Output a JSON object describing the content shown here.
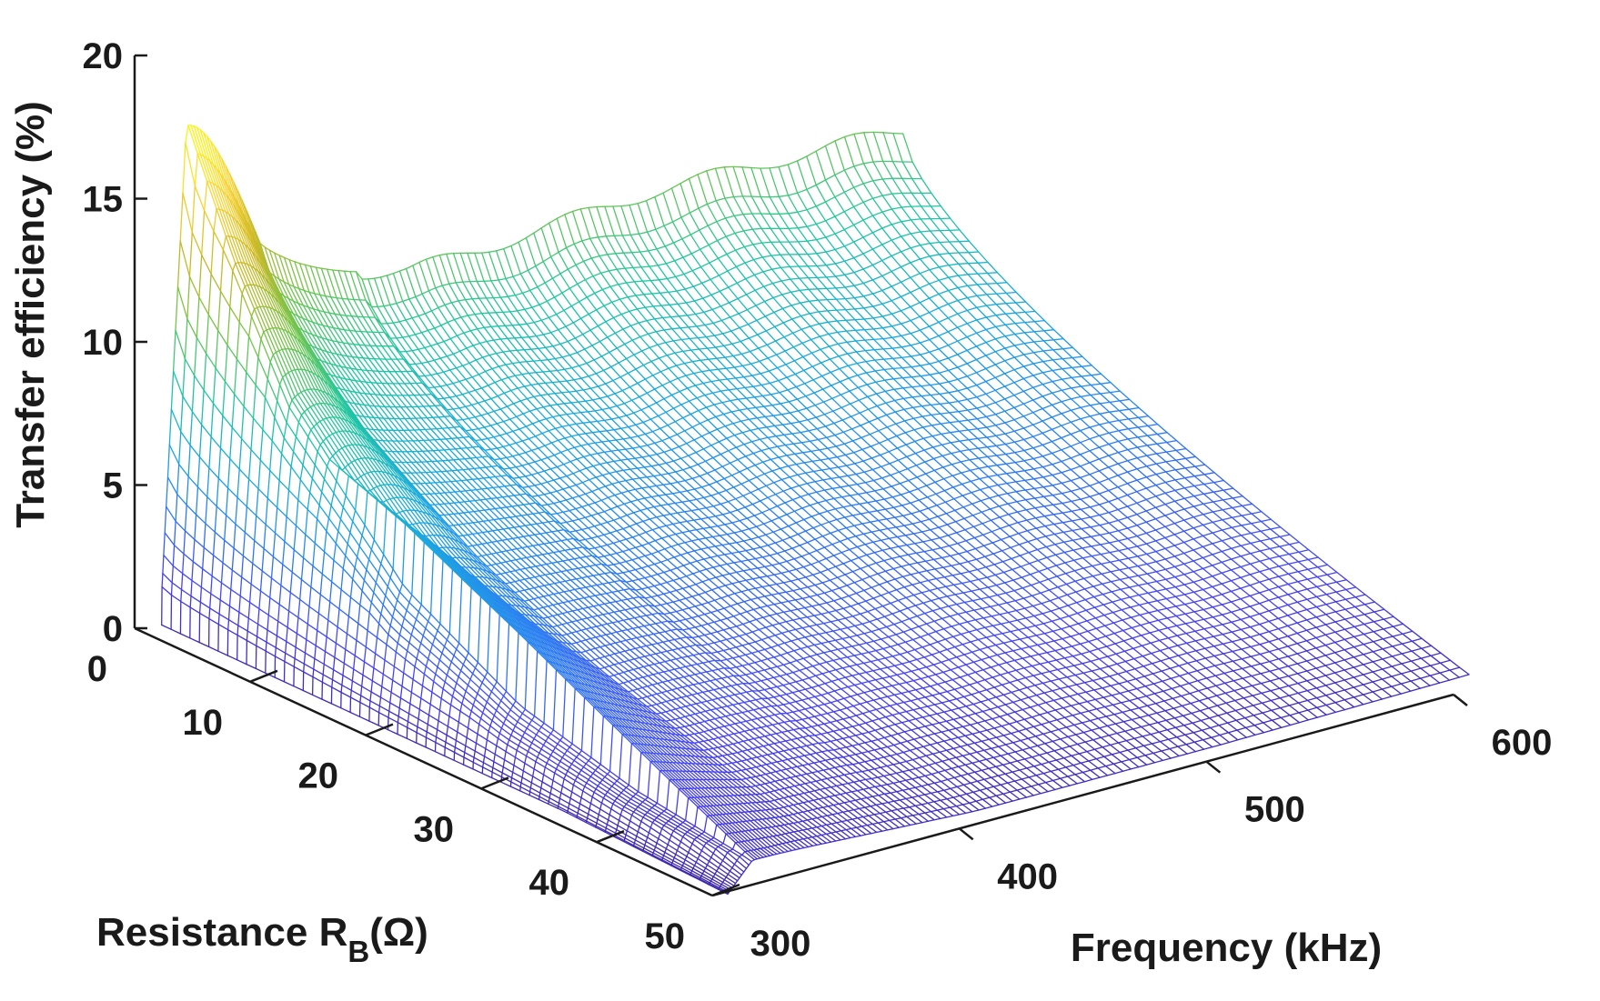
{
  "chart_data": {
    "type": "surface",
    "render": "mesh",
    "colormap": "parula",
    "colormap_colors": [
      "#3e26a8",
      "#4743f6",
      "#2c7cf3",
      "#1ba8e0",
      "#20c7a0",
      "#6dc54e",
      "#c9b927",
      "#fbd435",
      "#f9fb0e"
    ],
    "x_axis": {
      "label": "Frequency (kHz)",
      "range": [
        300,
        600
      ],
      "ticks": [
        300,
        400,
        500,
        600
      ],
      "tick_labels": [
        "300",
        "400",
        "500",
        "600"
      ]
    },
    "y_axis": {
      "label_main": "Resistance R",
      "label_sub": "B",
      "label_tail": "(Ω)",
      "range": [
        0,
        50
      ],
      "ticks": [
        0,
        10,
        20,
        30,
        40,
        50
      ],
      "tick_labels": [
        "0",
        "10",
        "20",
        "30",
        "40",
        "50"
      ]
    },
    "z_axis": {
      "label": "Transfer efficiency (%)",
      "range": [
        0,
        20
      ],
      "ticks": [
        0,
        5,
        10,
        15,
        20
      ],
      "tick_labels": [
        "0",
        "5",
        "10",
        "15",
        "20"
      ]
    },
    "surface_data_extent": {
      "frequency_khz": [
        300,
        600
      ],
      "resistance_ohm": [
        1,
        50
      ]
    },
    "peak": {
      "frequency_khz": 310,
      "resistance_ohm": 1,
      "efficiency_pct": 17.5
    },
    "resistance_profile": [
      {
        "resistance_ohm": 1,
        "efficiency_pct": 17.5
      },
      {
        "resistance_ohm": 5,
        "efficiency_pct": 13.5
      },
      {
        "resistance_ohm": 10,
        "efficiency_pct": 9.5
      },
      {
        "resistance_ohm": 20,
        "efficiency_pct": 5.0
      },
      {
        "resistance_ohm": 30,
        "efficiency_pct": 2.7
      },
      {
        "resistance_ohm": 40,
        "efficiency_pct": 1.6
      },
      {
        "resistance_ohm": 50,
        "efficiency_pct": 1.0
      }
    ],
    "frequency_profile_at_low_resistance": [
      {
        "frequency_khz": 300,
        "efficiency_pct": 1.4
      },
      {
        "frequency_khz": 310,
        "efficiency_pct": 17.5
      },
      {
        "frequency_khz": 340,
        "efficiency_pct": 11.0
      },
      {
        "frequency_khz": 400,
        "efficiency_pct": 10.2
      },
      {
        "frequency_khz": 450,
        "efficiency_pct": 10.5
      },
      {
        "frequency_khz": 500,
        "efficiency_pct": 10.8
      },
      {
        "frequency_khz": 600,
        "efficiency_pct": 10.6
      }
    ],
    "frequency_profile_at_high_resistance": [
      {
        "frequency_khz": 300,
        "efficiency_pct": 0.05
      },
      {
        "frequency_khz": 310,
        "efficiency_pct": 1.0
      },
      {
        "frequency_khz": 400,
        "efficiency_pct": 0.6
      },
      {
        "frequency_khz": 500,
        "efficiency_pct": 0.6
      },
      {
        "frequency_khz": 600,
        "efficiency_pct": 0.7
      }
    ],
    "grid": false,
    "legend": "none"
  }
}
